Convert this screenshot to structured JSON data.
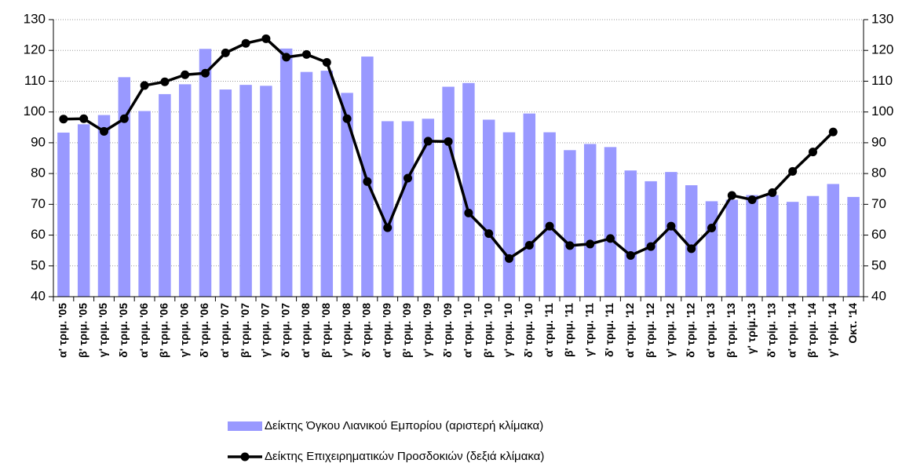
{
  "chart_data": {
    "type": "bar-line",
    "categories": [
      "α' τριμ. '05",
      "β' τριμ. '05",
      "γ' τριμ. '05",
      "δ' τριμ. '05",
      "α' τριμ. '06",
      "β' τριμ. '06",
      "γ' τριμ. '06",
      "δ' τριμ. '06",
      "α' τριμ. '07",
      "β' τριμ. '07",
      "γ' τριμ. '07",
      "δ' τριμ. '07",
      "α' τριμ. '08",
      "β' τριμ. '08",
      "γ' τριμ. '08",
      "δ' τριμ. '08",
      "α' τριμ. '09",
      "β' τριμ. '09",
      "γ' τριμ. '09",
      "δ' τριμ. '09",
      "α' τριμ. '10",
      "β' τριμ. '10",
      "γ' τριμ. '10",
      "δ' τριμ. '10",
      "α' τριμ. '11",
      "β' τριμ. '11",
      "γ' τριμ. '11",
      "δ' τριμ. '11",
      "α' τριμ. '12",
      "β' τριμ. '12",
      "γ' τριμ. '12",
      "δ' τριμ. '12",
      "α' τριμ. '13",
      "β' τριμ. '13",
      "γ' τρίμ.'13",
      "δ' τρίμ. '13",
      "α' τριμ. '14",
      "β' τριμ. '14",
      "γ' τρίμ. '14",
      "Οκτ. '14"
    ],
    "series": [
      {
        "name": "Δείκτης Όγκου Λιανικού Εμπορίου (αριστερή κλίμακα)",
        "color": "#9999ff",
        "kind": "bar",
        "values": [
          93.3,
          96,
          99,
          111.3,
          100.3,
          105.8,
          109,
          120.5,
          107.3,
          108.8,
          108.5,
          120.6,
          113,
          113.4,
          106.2,
          118,
          97,
          97,
          97.8,
          108.2,
          109.4,
          97.5,
          93.4,
          99.5,
          93.4,
          87.6,
          89.6,
          88.6,
          81,
          77.5,
          80.5,
          76.2,
          71,
          71.5,
          73,
          73,
          70.8,
          72.7,
          76.6,
          72.4
        ]
      },
      {
        "name": "Δείκτης Επιχειρηματικών Προσδοκιών (δεξιά κλίμακα)",
        "color": "#000000",
        "kind": "line",
        "axis": "y2",
        "values": [
          97.7,
          97.8,
          93.7,
          97.8,
          108.6,
          109.8,
          112.1,
          112.6,
          119.2,
          122.3,
          123.8,
          117.8,
          118.7,
          116.1,
          97.8,
          77.4,
          62.4,
          78.5,
          90.5,
          90.4,
          67.2,
          60.5,
          52.4,
          56.7,
          62.9,
          56.6,
          57.1,
          58.9,
          53.4,
          56.3,
          62.9,
          55.6,
          62.3,
          72.9,
          71.5,
          73.8,
          80.7,
          87,
          93.5,
          null
        ]
      }
    ],
    "ylim": [
      40,
      130
    ],
    "yticks": [
      40,
      50,
      60,
      70,
      80,
      90,
      100,
      110,
      120,
      130
    ],
    "y2lim": [
      40,
      130
    ],
    "y2ticks": [
      40,
      50,
      60,
      70,
      80,
      90,
      100,
      110,
      120,
      130
    ],
    "grid": true
  }
}
